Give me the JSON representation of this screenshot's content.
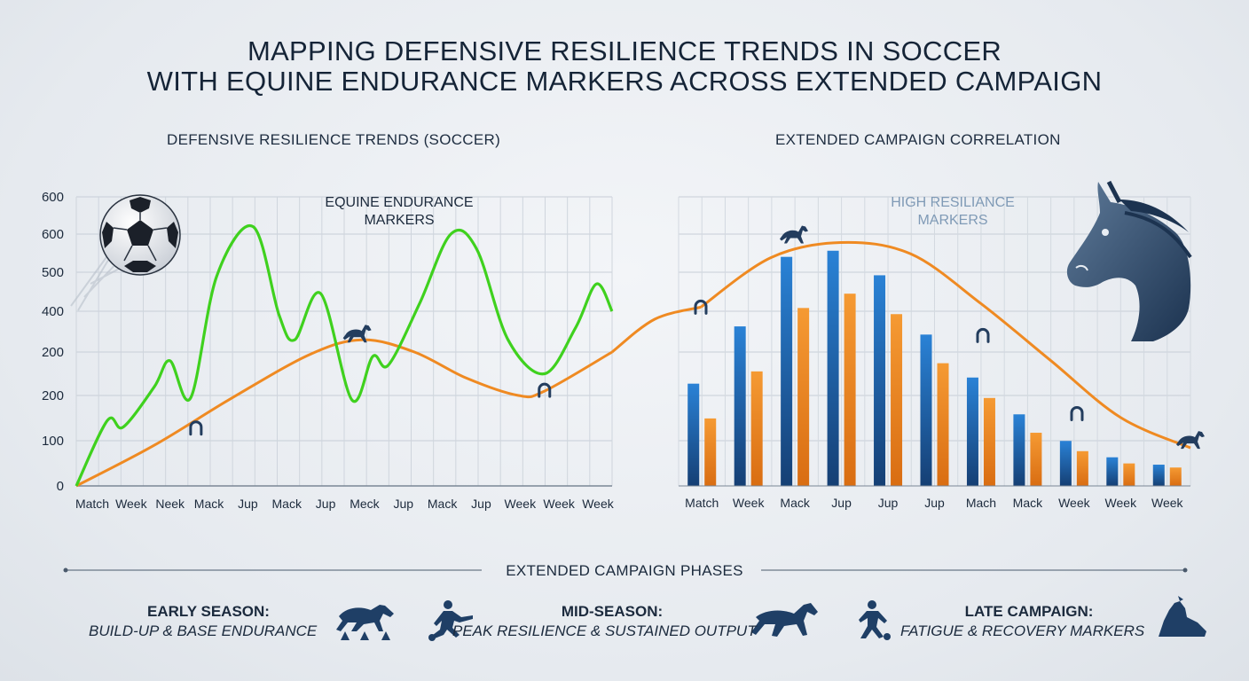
{
  "title_line1": "Mapping Defensive Resilience Trends in Soccer",
  "title_line2": "With Equine Endurance Markers Across Extended Campaign",
  "phases": {
    "header": "EXTENDED CAMPAIGN PHASES",
    "items": [
      {
        "title": "EARLY SEASON:",
        "subtitle": "BUILD-UP & BASE ENDURANCE"
      },
      {
        "title": "MID-SEASON:",
        "subtitle": "PEAK RESILIENCE & SUSTAINED OUTPUT"
      },
      {
        "title": "LATE CAMPAIGN:",
        "subtitle": "FATIGUE & RECOVERY MARKERS"
      }
    ]
  },
  "colors": {
    "green": "#3fd11e",
    "orange": "#ef8a22",
    "blue": "#1f6fc0",
    "navy": "#1c3b5e"
  },
  "chart_data": [
    {
      "type": "line",
      "title": "Defensive Resilience Trends (Soccer)",
      "annotation": "EQUINE ENDURANCE\nMARKERS",
      "y_tick_labels": [
        "0",
        "100",
        "200",
        "200",
        "400",
        "500",
        "600",
        "600"
      ],
      "x_tick_labels": [
        "Match",
        "Week",
        "Neek",
        "Mack",
        "Jup",
        "Mack",
        "Jup",
        "Meck",
        "Jup",
        "Mack",
        "Jup",
        "Week",
        "Week",
        "Week"
      ],
      "grid": true,
      "series": [
        {
          "color": "#3fd11e",
          "points": [
            [
              0,
              0
            ],
            [
              0.6,
              145
            ],
            [
              0.9,
              130
            ],
            [
              1.5,
              220
            ],
            [
              1.8,
              280
            ],
            [
              2.2,
              195
            ],
            [
              2.7,
              490
            ],
            [
              3.4,
              620
            ],
            [
              3.9,
              390
            ],
            [
              4.2,
              330
            ],
            [
              4.7,
              445
            ],
            [
              5.3,
              190
            ],
            [
              5.7,
              290
            ],
            [
              6.0,
              270
            ],
            [
              6.6,
              420
            ],
            [
              7.2,
              600
            ],
            [
              7.7,
              560
            ],
            [
              8.3,
              330
            ],
            [
              9.0,
              250
            ],
            [
              9.6,
              360
            ],
            [
              10.0,
              470
            ],
            [
              10.3,
              400
            ]
          ]
        },
        {
          "color": "#ef8a22",
          "points": [
            [
              0,
              0
            ],
            [
              1.5,
              90
            ],
            [
              3.0,
              195
            ],
            [
              4.5,
              295
            ],
            [
              5.5,
              330
            ],
            [
              6.5,
              300
            ],
            [
              7.5,
              240
            ],
            [
              8.5,
              200
            ],
            [
              9.0,
              210
            ],
            [
              10.3,
              300
            ]
          ],
          "markers": [
            {
              "x": 2.3,
              "y": 128,
              "symbol": "horseshoe"
            },
            {
              "x": 5.4,
              "y": 330,
              "symbol": "horse"
            },
            {
              "x": 9.0,
              "y": 212,
              "symbol": "horseshoe"
            }
          ]
        }
      ]
    },
    {
      "type": "bar",
      "title": "Extended Campaign Correlation",
      "annotation": "HIGH RESILIANCE\nMARKERS",
      "categories": [
        "Match",
        "Week",
        "Mack",
        "Jup",
        "Jup",
        "Jup",
        "Mach",
        "Mack",
        "Week",
        "Week",
        "Week"
      ],
      "series": [
        {
          "color": "#1f6fc0",
          "values": [
            250,
            390,
            560,
            575,
            515,
            370,
            265,
            175,
            110,
            70,
            52
          ]
        },
        {
          "color": "#ef8a22",
          "values": [
            165,
            280,
            435,
            470,
            420,
            300,
            215,
            130,
            85,
            55,
            45
          ]
        }
      ],
      "ylim": [
        0,
        620
      ],
      "trend_line": {
        "color": "#ef8a22",
        "values": [
          470,
          600,
          640,
          610,
          480,
          330,
          180,
          100
        ],
        "markers": [
          {
            "index": 0,
            "symbol": "horseshoe"
          },
          {
            "index": 1,
            "symbol": "horse"
          },
          {
            "index": 3,
            "symbol": "horseshoe"
          },
          {
            "index": 5,
            "symbol": "horseshoe"
          },
          {
            "index": 7,
            "symbol": "horse"
          }
        ]
      }
    }
  ]
}
